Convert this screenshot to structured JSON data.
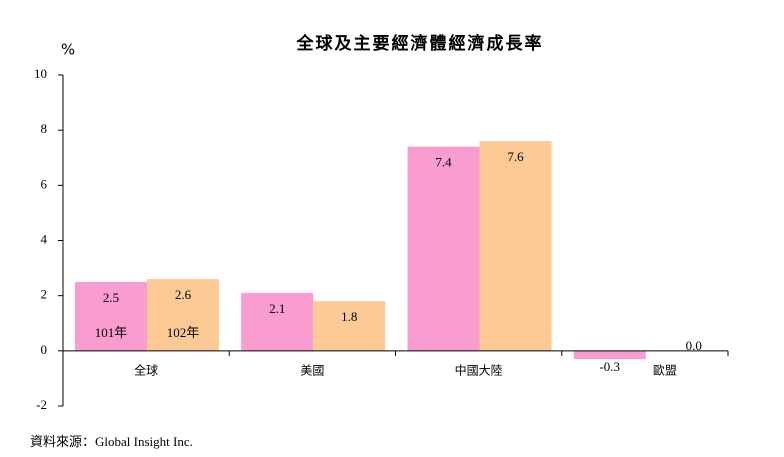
{
  "chart_data": {
    "type": "bar",
    "title": "全球及主要經濟體經濟成長率",
    "y_label": "%",
    "categories": [
      "全球",
      "美國",
      "中國大陸",
      "歐盟"
    ],
    "series": [
      {
        "name": "101年",
        "color": "#f99ccf",
        "values": [
          2.5,
          2.1,
          7.4,
          -0.3
        ],
        "value_labels": [
          "2.5",
          "2.1",
          "7.4",
          "-0.3"
        ]
      },
      {
        "name": "102年",
        "color": "#fdc995",
        "values": [
          2.6,
          1.8,
          7.6,
          0.0
        ],
        "value_labels": [
          "2.6",
          "1.8",
          "7.6",
          "0.0"
        ]
      }
    ],
    "ylim": [
      -2,
      10
    ],
    "yticks": [
      -2,
      0,
      2,
      4,
      6,
      8,
      10
    ],
    "source": "資料來源：Global Insight Inc."
  }
}
